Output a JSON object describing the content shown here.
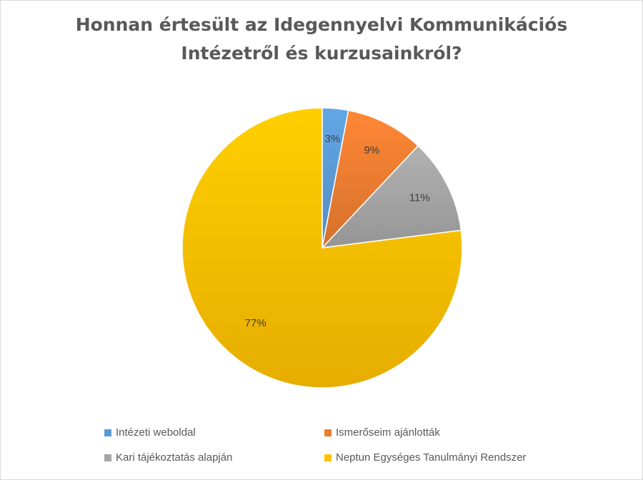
{
  "chart_data": {
    "type": "pie",
    "title_lines": [
      "Honnan értesült az Idegennyelvi Kommunikációs",
      "Intézetről és kurzusainkról?"
    ],
    "categories": [
      "Intézeti weboldal",
      "Ismerőseim ajánlották",
      "Kari tájékoztatás alapján",
      "Neptun Egységes Tanulmányi Rendszer"
    ],
    "values": [
      3,
      9,
      11,
      77
    ],
    "labels": [
      "3%",
      "9%",
      "11%",
      "77%"
    ],
    "colors": [
      "#5b9bd5",
      "#ed7d31",
      "#a5a5a5",
      "#ffc000"
    ],
    "legend_position": "bottom"
  }
}
